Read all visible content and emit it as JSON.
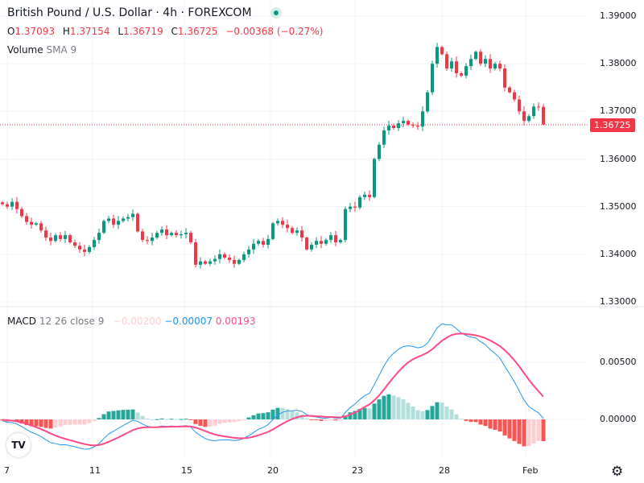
{
  "header": {
    "title": "British Pound / U.S. Dollar · 4h · FOREXCOM",
    "market_status": "open"
  },
  "ohlc": {
    "o_label": "O",
    "o": "1.37093",
    "h_label": "H",
    "h": "1.37154",
    "l_label": "L",
    "l": "1.36719",
    "c_label": "C",
    "c": "1.36725",
    "change": "−0.00368 (−0.27%)"
  },
  "volume_legend": {
    "label": "Volume",
    "params": "SMA 9"
  },
  "macd_legend": {
    "label": "MACD",
    "params": "12 26 close 9",
    "histogram": "−0.00200",
    "macd": "−0.00007",
    "signal": "0.00193"
  },
  "price_axis": [
    "1.39000",
    "1.38000",
    "1.37000",
    "1.36000",
    "1.35000",
    "1.34000",
    "1.33000"
  ],
  "macd_axis": [
    "0.00500",
    "0.00000"
  ],
  "time_axis": [
    "7",
    "11",
    "15",
    "20",
    "23",
    "28",
    "Feb"
  ],
  "last_price": "1.36725",
  "logo_text": "TV",
  "colors": {
    "up": "#089981",
    "down": "#f23645",
    "macd": "#2196f3",
    "signal": "#ff4a86",
    "hist_up": "#26a69a",
    "hist_up_light": "#b2dfdb",
    "hist_down": "#ff5252",
    "hist_down_light": "#ffcdd2"
  },
  "chart_data": {
    "type": "candlestick",
    "ylim": [
      1.33,
      1.39
    ],
    "last_open": 1.37093,
    "last_high": 1.37154,
    "last_low": 1.36719,
    "closes": [
      1.3505,
      1.35,
      1.351,
      1.3495,
      1.348,
      1.3468,
      1.3462,
      1.3465,
      1.345,
      1.3435,
      1.3428,
      1.344,
      1.3432,
      1.344,
      1.3425,
      1.3418,
      1.341,
      1.3405,
      1.3415,
      1.343,
      1.3445,
      1.347,
      1.3475,
      1.3462,
      1.347,
      1.3475,
      1.3478,
      1.3485,
      1.3448,
      1.343,
      1.3428,
      1.3435,
      1.3445,
      1.3452,
      1.344,
      1.3445,
      1.344,
      1.3442,
      1.3445,
      1.3425,
      1.3378,
      1.3385,
      1.338,
      1.3385,
      1.339,
      1.34,
      1.3393,
      1.3388,
      1.338,
      1.3388,
      1.34,
      1.341,
      1.3422,
      1.3428,
      1.342,
      1.3432,
      1.3465,
      1.347,
      1.3462,
      1.3455,
      1.3445,
      1.345,
      1.3435,
      1.341,
      1.342,
      1.3428,
      1.3422,
      1.343,
      1.344,
      1.3425,
      1.343,
      1.3495,
      1.35,
      1.3498,
      1.352,
      1.3525,
      1.352,
      1.36,
      1.363,
      1.366,
      1.367,
      1.3665,
      1.3675,
      1.368,
      1.3672,
      1.367,
      1.3668,
      1.37,
      1.374,
      1.38,
      1.3835,
      1.382,
      1.379,
      1.3805,
      1.378,
      1.3775,
      1.3795,
      1.381,
      1.3825,
      1.38,
      1.381,
      1.379,
      1.38,
      1.379,
      1.375,
      1.374,
      1.3725,
      1.37,
      1.368,
      1.369,
      1.371,
      1.37093,
      1.36725
    ]
  }
}
